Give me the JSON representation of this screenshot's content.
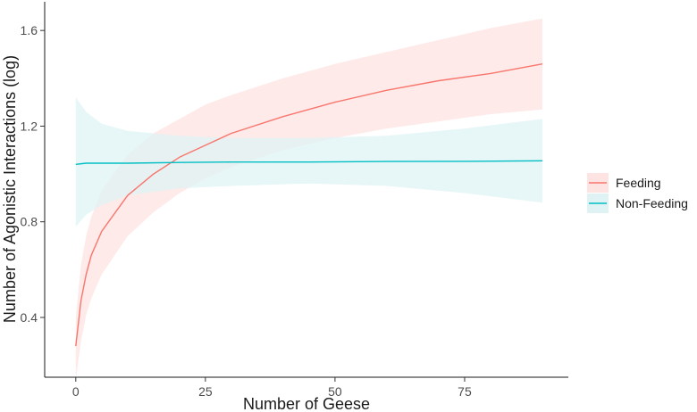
{
  "chart_data": {
    "type": "line",
    "title": "",
    "xlabel": "Number of Geese",
    "ylabel": "Number of Agonistic Interactions (log)",
    "xlim": [
      -6,
      95
    ],
    "ylim": [
      0.15,
      1.72
    ],
    "x_ticks": [
      0,
      25,
      50,
      75
    ],
    "y_ticks": [
      0.4,
      0.8,
      1.2,
      1.6
    ],
    "x_tick_labels": [
      "0",
      "25",
      "50",
      "75"
    ],
    "y_tick_labels": [
      "0.4",
      "0.8",
      "1.2",
      "1.6"
    ],
    "grid": false,
    "legend_position": "right",
    "series": [
      {
        "name": "Feeding",
        "color": "#f8766d",
        "ribbon_color": "#fde3e1",
        "x": [
          0,
          1,
          2,
          3,
          5,
          10,
          15,
          20,
          25,
          30,
          40,
          50,
          60,
          70,
          80,
          90
        ],
        "y": [
          0.28,
          0.47,
          0.58,
          0.66,
          0.76,
          0.91,
          1.0,
          1.07,
          1.12,
          1.17,
          1.24,
          1.3,
          1.35,
          1.39,
          1.42,
          1.46
        ],
        "lower": [
          0.14,
          0.3,
          0.41,
          0.48,
          0.58,
          0.74,
          0.84,
          0.92,
          0.98,
          1.03,
          1.1,
          1.15,
          1.19,
          1.22,
          1.25,
          1.27
        ],
        "upper": [
          0.4,
          0.62,
          0.74,
          0.82,
          0.93,
          1.08,
          1.17,
          1.23,
          1.29,
          1.33,
          1.4,
          1.46,
          1.51,
          1.56,
          1.61,
          1.65
        ]
      },
      {
        "name": "Non-Feeding",
        "color": "#00bfc4",
        "ribbon_color": "#dff3f4",
        "x": [
          0,
          2,
          5,
          10,
          20,
          30,
          45,
          60,
          75,
          90
        ],
        "y": [
          1.04,
          1.045,
          1.045,
          1.045,
          1.048,
          1.05,
          1.05,
          1.052,
          1.053,
          1.055
        ],
        "lower": [
          0.78,
          0.83,
          0.87,
          0.91,
          0.94,
          0.95,
          0.96,
          0.95,
          0.92,
          0.88
        ],
        "upper": [
          1.32,
          1.26,
          1.21,
          1.18,
          1.16,
          1.15,
          1.15,
          1.16,
          1.19,
          1.23
        ]
      }
    ]
  }
}
